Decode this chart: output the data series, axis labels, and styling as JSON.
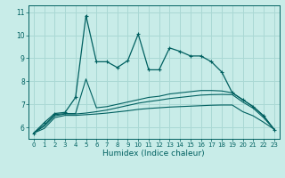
{
  "background_color": "#c8ece8",
  "grid_color": "#aad8d4",
  "line_color": "#006060",
  "x_label": "Humidex (Indice chaleur)",
  "xlim": [
    -0.5,
    23.5
  ],
  "ylim": [
    5.5,
    11.3
  ],
  "xticks": [
    0,
    1,
    2,
    3,
    4,
    5,
    6,
    7,
    8,
    9,
    10,
    11,
    12,
    13,
    14,
    15,
    16,
    17,
    18,
    19,
    20,
    21,
    22,
    23
  ],
  "yticks": [
    6,
    7,
    8,
    9,
    10,
    11
  ],
  "series1_x": [
    0,
    1,
    2,
    3,
    4,
    5,
    6,
    7,
    8,
    9,
    10,
    11,
    12,
    13,
    14,
    15,
    16,
    17,
    18,
    19,
    20,
    21,
    22,
    23
  ],
  "series1_y": [
    5.75,
    6.2,
    6.6,
    6.65,
    7.3,
    10.85,
    8.85,
    8.85,
    8.6,
    8.9,
    10.05,
    8.5,
    8.5,
    9.45,
    9.3,
    9.1,
    9.1,
    8.85,
    8.4,
    7.5,
    7.2,
    6.9,
    6.5,
    5.9
  ],
  "series2_x": [
    0,
    1,
    2,
    3,
    4,
    5,
    6,
    7,
    8,
    9,
    10,
    11,
    12,
    13,
    14,
    15,
    16,
    17,
    18,
    19,
    20,
    21,
    22,
    23
  ],
  "series2_y": [
    5.75,
    6.1,
    6.55,
    6.6,
    6.6,
    8.1,
    6.85,
    6.9,
    7.0,
    7.1,
    7.2,
    7.3,
    7.35,
    7.45,
    7.5,
    7.55,
    7.6,
    7.6,
    7.58,
    7.5,
    7.2,
    6.9,
    6.5,
    5.92
  ],
  "series3_x": [
    0,
    1,
    2,
    3,
    4,
    5,
    6,
    7,
    8,
    9,
    10,
    11,
    12,
    13,
    14,
    15,
    16,
    17,
    18,
    19,
    20,
    21,
    22,
    23
  ],
  "series3_y": [
    5.75,
    6.05,
    6.5,
    6.58,
    6.58,
    6.62,
    6.68,
    6.75,
    6.85,
    6.95,
    7.05,
    7.12,
    7.18,
    7.25,
    7.3,
    7.35,
    7.4,
    7.42,
    7.43,
    7.42,
    7.1,
    6.83,
    6.42,
    5.92
  ],
  "series4_x": [
    0,
    1,
    2,
    3,
    4,
    5,
    6,
    7,
    8,
    9,
    10,
    11,
    12,
    13,
    14,
    15,
    16,
    17,
    18,
    19,
    20,
    21,
    22,
    23
  ],
  "series4_y": [
    5.75,
    5.95,
    6.42,
    6.52,
    6.52,
    6.55,
    6.58,
    6.62,
    6.67,
    6.72,
    6.78,
    6.82,
    6.85,
    6.88,
    6.9,
    6.92,
    6.94,
    6.96,
    6.97,
    6.97,
    6.68,
    6.5,
    6.22,
    5.92
  ]
}
